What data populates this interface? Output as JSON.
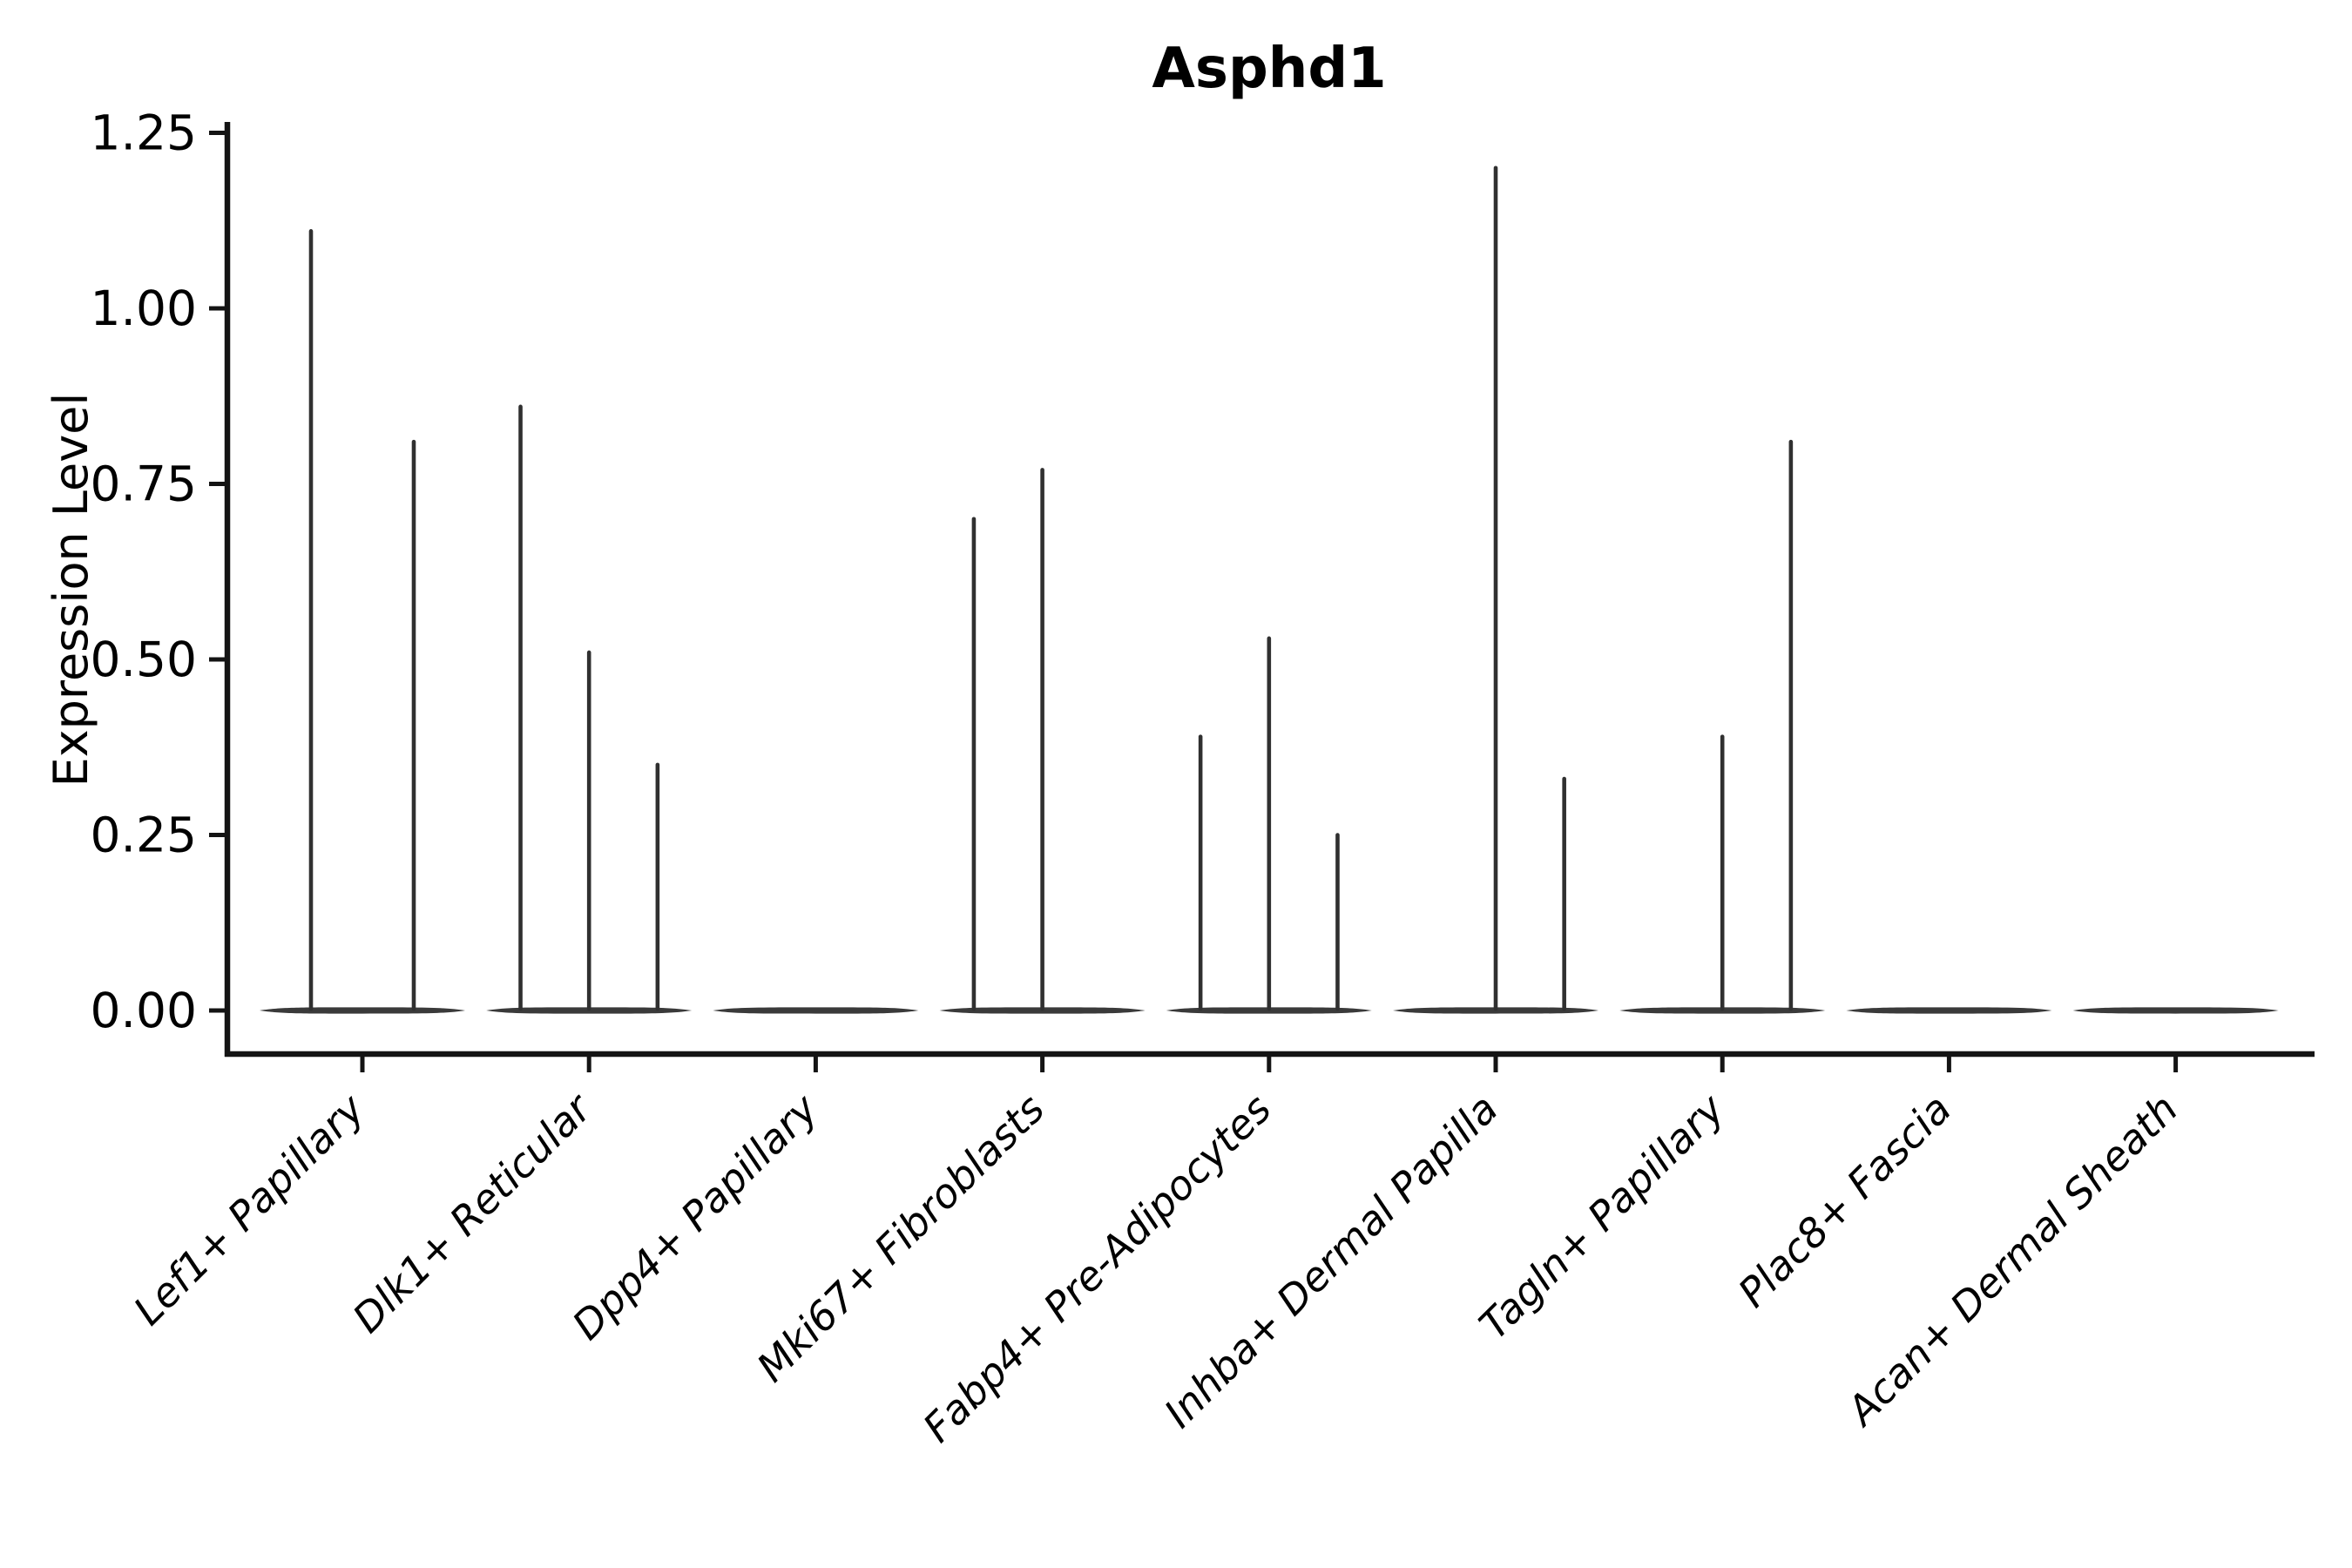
{
  "title": "Asphd1",
  "y_axis": {
    "label": "Expression Level",
    "ticks": [
      "0.00",
      "0.25",
      "0.50",
      "0.75",
      "1.00",
      "1.25"
    ]
  },
  "chart_data": {
    "type": "violin",
    "title": "Asphd1",
    "xlabel": "",
    "ylabel": "Expression Level",
    "ylim": [
      0,
      1.27
    ],
    "ytick_values": [
      0,
      0.25,
      0.5,
      0.75,
      1.0,
      1.25
    ],
    "categories": [
      "Lef1+ Papillary",
      "Dlk1+ Reticular",
      "Dpp4+ Papillary",
      "Mki67+ Fibroblasts",
      "Fabp4+ Pre-Adipocytes",
      "Inhba+ Dermal Papilla",
      "Tagln+ Papillary",
      "Plac8+ Fascia",
      "Acan+ Dermal Sheath"
    ],
    "series": [
      {
        "category": "Lef1+ Papillary",
        "violin_spike_maxima": [
          1.11,
          0.81
        ]
      },
      {
        "category": "Dlk1+ Reticular",
        "violin_spike_maxima": [
          0.86,
          0.51,
          0.35
        ]
      },
      {
        "category": "Dpp4+ Papillary",
        "violin_spike_maxima": [
          0
        ]
      },
      {
        "category": "Mki67+ Fibroblasts",
        "violin_spike_maxima": [
          0.7,
          0.77,
          0
        ]
      },
      {
        "category": "Fabp4+ Pre-Adipocytes",
        "violin_spike_maxima": [
          0.39,
          0.53,
          0.25
        ]
      },
      {
        "category": "Inhba+ Dermal Papilla",
        "violin_spike_maxima": [
          0,
          1.2,
          0.33
        ]
      },
      {
        "category": "Tagln+ Papillary",
        "violin_spike_maxima": [
          0,
          0.39,
          0.81
        ]
      },
      {
        "category": "Plac8+ Fascia",
        "violin_spike_maxima": [
          0
        ]
      },
      {
        "category": "Acan+ Dermal Sheath",
        "violin_spike_maxima": [
          0
        ]
      }
    ],
    "grid": false,
    "legend_position": "none"
  },
  "colors": {
    "background": "#ffffff",
    "violin_fill": "#3a3a3a",
    "spike_stroke": "#303030",
    "axis": "#141414",
    "text": "#000000"
  }
}
